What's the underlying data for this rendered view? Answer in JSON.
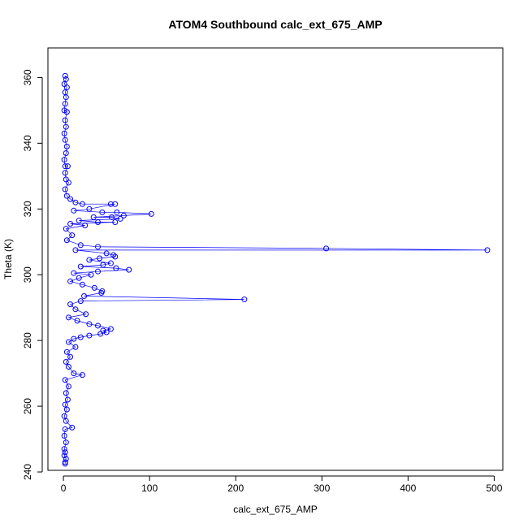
{
  "chart_data": {
    "type": "scatter",
    "title": "ATOM4 Southbound calc_ext_675_AMP",
    "xlabel": "calc_ext_675_AMP",
    "ylabel": "Theta (K)",
    "xlim": [
      -18,
      510
    ],
    "ylim": [
      240.5,
      369
    ],
    "x_ticks": [
      0,
      100,
      200,
      300,
      400,
      500
    ],
    "y_ticks": [
      240,
      260,
      280,
      300,
      320,
      340,
      360
    ],
    "x_tick_labels": [
      "0",
      "100",
      "200",
      "300",
      "400",
      "500"
    ],
    "y_tick_labels": [
      "240",
      "260",
      "280",
      "300",
      "320",
      "340",
      "360"
    ],
    "grid": false,
    "legend": "none",
    "marker": "open-circle",
    "connected": true,
    "series_color": "#0000ff",
    "points": [
      [
        2,
        360.5
      ],
      [
        3,
        359.5
      ],
      [
        1,
        358
      ],
      [
        4,
        357
      ],
      [
        2,
        355.5
      ],
      [
        3,
        354
      ],
      [
        2,
        352
      ],
      [
        1,
        350
      ],
      [
        4,
        349.5
      ],
      [
        2,
        347
      ],
      [
        3,
        345
      ],
      [
        1,
        343
      ],
      [
        2,
        341
      ],
      [
        4,
        339
      ],
      [
        3,
        337
      ],
      [
        1,
        335
      ],
      [
        2,
        333
      ],
      [
        5,
        333
      ],
      [
        2,
        331
      ],
      [
        3,
        329
      ],
      [
        6,
        328
      ],
      [
        2,
        326
      ],
      [
        4,
        324
      ],
      [
        8,
        323
      ],
      [
        14,
        322
      ],
      [
        22,
        321.5
      ],
      [
        55,
        321.5
      ],
      [
        60,
        321.5
      ],
      [
        30,
        320
      ],
      [
        12,
        319.5
      ],
      [
        45,
        319
      ],
      [
        62,
        319
      ],
      [
        102,
        318.5
      ],
      [
        70,
        318
      ],
      [
        35,
        317.5
      ],
      [
        56,
        317.5
      ],
      [
        66,
        317
      ],
      [
        18,
        316.5
      ],
      [
        40,
        316
      ],
      [
        60,
        316
      ],
      [
        8,
        315.5
      ],
      [
        25,
        315
      ],
      [
        3,
        314
      ],
      [
        10,
        312
      ],
      [
        4,
        310.5
      ],
      [
        20,
        309
      ],
      [
        40,
        308.5
      ],
      [
        305,
        308
      ],
      [
        492,
        307.5
      ],
      [
        14,
        307.5
      ],
      [
        50,
        306.5
      ],
      [
        58,
        306
      ],
      [
        60,
        305.5
      ],
      [
        42,
        305
      ],
      [
        30,
        304.5
      ],
      [
        55,
        303.5
      ],
      [
        46,
        303
      ],
      [
        20,
        302.5
      ],
      [
        61,
        302
      ],
      [
        76,
        301.5
      ],
      [
        40,
        301
      ],
      [
        12,
        300.5
      ],
      [
        32,
        300
      ],
      [
        18,
        299
      ],
      [
        8,
        298
      ],
      [
        22,
        297
      ],
      [
        36,
        296
      ],
      [
        45,
        295
      ],
      [
        44,
        294.5
      ],
      [
        24,
        293.5
      ],
      [
        210,
        292.5
      ],
      [
        20,
        292
      ],
      [
        8,
        291
      ],
      [
        14,
        289.5
      ],
      [
        26,
        288
      ],
      [
        6,
        287
      ],
      [
        16,
        286
      ],
      [
        30,
        285
      ],
      [
        40,
        284.5
      ],
      [
        55,
        283.5
      ],
      [
        46,
        283
      ],
      [
        50,
        282.5
      ],
      [
        43,
        282
      ],
      [
        30,
        281.5
      ],
      [
        20,
        281
      ],
      [
        12,
        280.5
      ],
      [
        6,
        279.5
      ],
      [
        14,
        278
      ],
      [
        4,
        276.5
      ],
      [
        8,
        275
      ],
      [
        3,
        273.5
      ],
      [
        6,
        272
      ],
      [
        12,
        270
      ],
      [
        22,
        269.5
      ],
      [
        2,
        268
      ],
      [
        6,
        266
      ],
      [
        3,
        264
      ],
      [
        5,
        262
      ],
      [
        2,
        260.5
      ],
      [
        4,
        259
      ],
      [
        1,
        257
      ],
      [
        3,
        255.5
      ],
      [
        10,
        253.5
      ],
      [
        2,
        253
      ],
      [
        1,
        251
      ],
      [
        3,
        249
      ],
      [
        1,
        247
      ],
      [
        2,
        246
      ],
      [
        1,
        245
      ],
      [
        3,
        244
      ],
      [
        2,
        243
      ],
      [
        2,
        242.5
      ]
    ]
  }
}
